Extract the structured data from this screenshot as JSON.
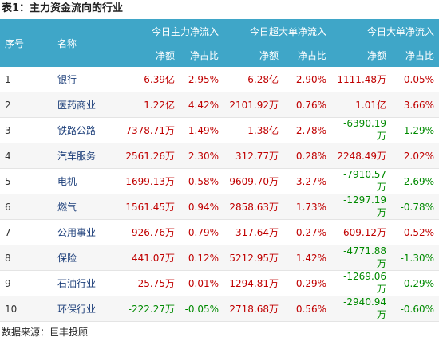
{
  "title": "表1：主力资金流向的行业",
  "table": {
    "group_headers": [
      "序号",
      "名称",
      "今日主力净流入",
      "今日超大单净流入",
      "今日大单净流入"
    ],
    "sub_headers": [
      "净额",
      "净占比",
      "净额",
      "净占比",
      "净额",
      "净占比"
    ],
    "rows": [
      [
        "1",
        "银行",
        "6.39亿",
        "2.95%",
        "6.28亿",
        "2.90%",
        "1111.48万",
        "0.05%"
      ],
      [
        "2",
        "医药商业",
        "1.22亿",
        "4.42%",
        "2101.92万",
        "0.76%",
        "1.01亿",
        "3.66%"
      ],
      [
        "3",
        "铁路公路",
        "7378.71万",
        "1.49%",
        "1.38亿",
        "2.78%",
        "-6390.19万",
        "-1.29%"
      ],
      [
        "4",
        "汽车服务",
        "2561.26万",
        "2.30%",
        "312.77万",
        "0.28%",
        "2248.49万",
        "2.02%"
      ],
      [
        "5",
        "电机",
        "1699.13万",
        "0.58%",
        "9609.70万",
        "3.27%",
        "-7910.57万",
        "-2.69%"
      ],
      [
        "6",
        "燃气",
        "1561.45万",
        "0.94%",
        "2858.63万",
        "1.73%",
        "-1297.19万",
        "-0.78%"
      ],
      [
        "7",
        "公用事业",
        "926.76万",
        "0.79%",
        "317.64万",
        "0.27%",
        "609.12万",
        "0.52%"
      ],
      [
        "8",
        "保险",
        "441.07万",
        "0.12%",
        "5212.95万",
        "1.42%",
        "-4771.88万",
        "-1.30%"
      ],
      [
        "9",
        "石油行业",
        "25.75万",
        "0.01%",
        "1294.81万",
        "0.29%",
        "-1269.06万",
        "-0.29%"
      ],
      [
        "10",
        "环保行业",
        "-222.27万",
        "-0.05%",
        "2718.68万",
        "0.56%",
        "-2940.94万",
        "-0.60%"
      ]
    ]
  },
  "footer": "数据来源：巨丰投顾"
}
